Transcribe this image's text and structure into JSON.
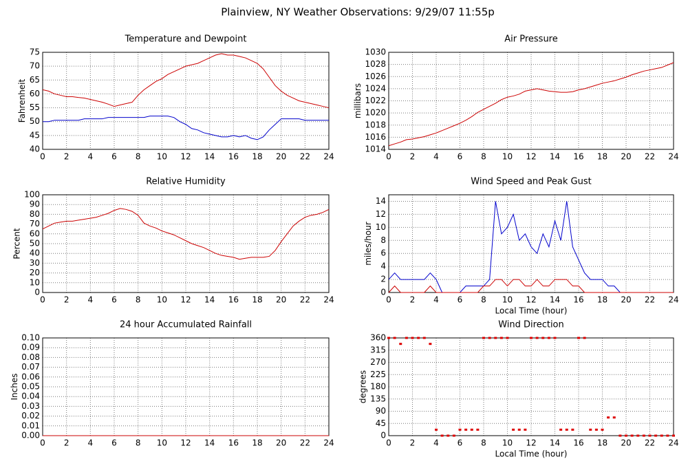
{
  "title": "Plainview, NY Weather Observations: 9/29/07 11:55p",
  "chart_data": [
    {
      "type": "line",
      "title": "Temperature and Dewpoint",
      "ylabel": "Fahrenheit",
      "x": [
        0,
        0.5,
        1,
        1.5,
        2,
        2.5,
        3,
        3.5,
        4,
        4.5,
        5,
        5.5,
        6,
        6.5,
        7,
        7.5,
        8,
        8.5,
        9,
        9.5,
        10,
        10.5,
        11,
        11.5,
        12,
        12.5,
        13,
        13.5,
        14,
        14.5,
        15,
        15.5,
        16,
        16.5,
        17,
        17.5,
        18,
        18.5,
        19,
        19.5,
        20,
        20.5,
        21,
        21.5,
        22,
        22.5,
        23,
        23.5,
        24
      ],
      "series": [
        {
          "color": "#cc0000",
          "values": [
            61.5,
            61,
            60,
            59.5,
            59,
            59,
            58.7,
            58.5,
            58,
            57.5,
            57,
            56.3,
            55.5,
            56,
            56.5,
            57,
            59.5,
            61.5,
            63,
            64.5,
            65.5,
            67,
            68,
            69,
            70,
            70.5,
            71,
            72,
            73,
            74,
            74.5,
            74,
            74,
            73.5,
            73,
            72,
            71,
            69,
            66,
            63,
            61,
            59.5,
            58.5,
            57.5,
            57,
            56.5,
            56,
            55.5,
            55
          ]
        },
        {
          "color": "#0000cc",
          "values": [
            50,
            50,
            50.5,
            50.5,
            50.5,
            50.5,
            50.5,
            51,
            51,
            51,
            51,
            51.5,
            51.5,
            51.5,
            51.5,
            51.5,
            51.5,
            51.5,
            52,
            52,
            52,
            52,
            51.5,
            50,
            49,
            47.5,
            47,
            46,
            45.5,
            45,
            44.5,
            44.5,
            45,
            44.5,
            45,
            44,
            43.5,
            44.5,
            47,
            49,
            51,
            51,
            51,
            51,
            50.5,
            50.5,
            50.5,
            50.5,
            50.5
          ]
        }
      ],
      "xlim": [
        0,
        24
      ],
      "xticks": [
        0,
        2,
        4,
        6,
        8,
        10,
        12,
        14,
        16,
        18,
        20,
        22,
        24
      ],
      "ylim": [
        40,
        75
      ],
      "yticks": [
        40,
        45,
        50,
        55,
        60,
        65,
        70,
        75
      ],
      "grid": true
    },
    {
      "type": "line",
      "title": "Air Pressure",
      "ylabel": "millibars",
      "x": [
        0,
        0.5,
        1,
        1.5,
        2,
        2.5,
        3,
        3.5,
        4,
        4.5,
        5,
        5.5,
        6,
        6.5,
        7,
        7.5,
        8,
        8.5,
        9,
        9.5,
        10,
        10.5,
        11,
        11.5,
        12,
        12.5,
        13,
        13.5,
        14,
        14.5,
        15,
        15.5,
        16,
        16.5,
        17,
        17.5,
        18,
        18.5,
        19,
        19.5,
        20,
        20.5,
        21,
        21.5,
        22,
        22.5,
        23,
        23.5,
        24
      ],
      "series": [
        {
          "color": "#cc0000",
          "values": [
            1014.6,
            1014.9,
            1015.2,
            1015.6,
            1015.7,
            1015.9,
            1016.1,
            1016.4,
            1016.7,
            1017.1,
            1017.5,
            1017.9,
            1018.3,
            1018.8,
            1019.4,
            1020.1,
            1020.6,
            1021.1,
            1021.6,
            1022.2,
            1022.6,
            1022.8,
            1023.1,
            1023.6,
            1023.8,
            1024,
            1023.8,
            1023.6,
            1023.5,
            1023.4,
            1023.4,
            1023.5,
            1023.8,
            1024,
            1024.3,
            1024.6,
            1024.9,
            1025.1,
            1025.3,
            1025.6,
            1025.9,
            1026.3,
            1026.6,
            1026.9,
            1027.1,
            1027.3,
            1027.5,
            1027.9,
            1028.3
          ]
        }
      ],
      "xlim": [
        0,
        24
      ],
      "xticks": [
        0,
        2,
        4,
        6,
        8,
        10,
        12,
        14,
        16,
        18,
        20,
        22,
        24
      ],
      "ylim": [
        1014,
        1030
      ],
      "yticks": [
        1014,
        1016,
        1018,
        1020,
        1022,
        1024,
        1026,
        1028,
        1030
      ],
      "grid": true
    },
    {
      "type": "line",
      "title": "Relative Humidity",
      "ylabel": "Percent",
      "x": [
        0,
        0.5,
        1,
        1.5,
        2,
        2.5,
        3,
        3.5,
        4,
        4.5,
        5,
        5.5,
        6,
        6.5,
        7,
        7.5,
        8,
        8.5,
        9,
        9.5,
        10,
        10.5,
        11,
        11.5,
        12,
        12.5,
        13,
        13.5,
        14,
        14.5,
        15,
        15.5,
        16,
        16.5,
        17,
        17.5,
        18,
        18.5,
        19,
        19.5,
        20,
        20.5,
        21,
        21.5,
        22,
        22.5,
        23,
        23.5,
        24
      ],
      "series": [
        {
          "color": "#cc0000",
          "values": [
            65,
            68,
            71,
            72,
            73,
            73,
            74,
            75,
            76,
            77,
            79,
            81,
            84,
            86,
            85,
            83,
            79,
            71,
            68,
            66,
            63,
            61,
            59,
            56,
            53,
            50,
            48,
            46,
            43,
            40,
            38,
            37,
            36,
            34,
            35,
            36,
            36,
            36,
            37,
            43,
            52,
            60,
            68,
            73,
            77,
            79,
            80,
            82,
            85
          ]
        }
      ],
      "xlim": [
        0,
        24
      ],
      "xticks": [
        0,
        2,
        4,
        6,
        8,
        10,
        12,
        14,
        16,
        18,
        20,
        22,
        24
      ],
      "ylim": [
        0,
        100
      ],
      "yticks": [
        0,
        10,
        20,
        30,
        40,
        50,
        60,
        70,
        80,
        90,
        100
      ],
      "grid": true
    },
    {
      "type": "line",
      "title": "Wind Speed and Peak Gust",
      "ylabel": "miles/hour",
      "xlabel": "Local Time (hour)",
      "x": [
        0,
        0.5,
        1,
        1.5,
        2,
        2.5,
        3,
        3.5,
        4,
        4.5,
        5,
        5.5,
        6,
        6.5,
        7,
        7.5,
        8,
        8.5,
        9,
        9.5,
        10,
        10.5,
        11,
        11.5,
        12,
        12.5,
        13,
        13.5,
        14,
        14.5,
        15,
        15.5,
        16,
        16.5,
        17,
        17.5,
        18,
        18.5,
        19,
        19.5,
        20,
        20.5,
        21,
        21.5,
        22,
        22.5,
        23,
        23.5,
        24
      ],
      "series": [
        {
          "color": "#0000cc",
          "values": [
            2,
            3,
            2,
            2,
            2,
            2,
            2,
            3,
            2,
            0,
            0,
            0,
            0,
            1,
            1,
            1,
            1,
            2,
            14,
            9,
            10,
            12,
            8,
            9,
            7,
            6,
            9,
            7,
            11,
            8,
            14,
            7,
            5,
            3,
            2,
            2,
            2,
            1,
            1,
            0,
            0,
            0,
            0,
            0,
            0,
            0,
            0,
            0,
            0
          ]
        },
        {
          "color": "#cc0000",
          "values": [
            0,
            1,
            0,
            0,
            0,
            0,
            0,
            1,
            0,
            0,
            0,
            0,
            0,
            0,
            0,
            0,
            1,
            1,
            2,
            2,
            1,
            2,
            2,
            1,
            1,
            2,
            1,
            1,
            2,
            2,
            2,
            1,
            1,
            0,
            0,
            0,
            0,
            0,
            0,
            0,
            0,
            0,
            0,
            0,
            0,
            0,
            0,
            0,
            0
          ]
        }
      ],
      "xlim": [
        0,
        24
      ],
      "xticks": [
        0,
        2,
        4,
        6,
        8,
        10,
        12,
        14,
        16,
        18,
        20,
        22,
        24
      ],
      "ylim": [
        0,
        15
      ],
      "yticks": [
        0,
        2,
        4,
        6,
        8,
        10,
        12,
        14
      ],
      "grid": true
    },
    {
      "type": "line",
      "title": "24 hour Accumulated Rainfall",
      "ylabel": "Inches",
      "x": [
        0,
        24
      ],
      "series": [
        {
          "color": "#cc0000",
          "values": [
            0,
            0
          ]
        }
      ],
      "xlim": [
        0,
        24
      ],
      "xticks": [
        0,
        2,
        4,
        6,
        8,
        10,
        12,
        14,
        16,
        18,
        20,
        22,
        24
      ],
      "ylim": [
        0,
        0.1
      ],
      "yticks": [
        {
          "value": 0,
          "label": "0.00"
        },
        {
          "value": 0.01,
          "label": "0.01"
        },
        {
          "value": 0.02,
          "label": "0.02"
        },
        {
          "value": 0.03,
          "label": "0.03"
        },
        {
          "value": 0.04,
          "label": "0.04"
        },
        {
          "value": 0.05,
          "label": "0.05"
        },
        {
          "value": 0.06,
          "label": "0.06"
        },
        {
          "value": 0.07,
          "label": "0.07"
        },
        {
          "value": 0.08,
          "label": "0.08"
        },
        {
          "value": 0.09,
          "label": "0.09"
        },
        {
          "value": 0.1,
          "label": "0.10"
        }
      ],
      "grid": true
    },
    {
      "type": "scatter",
      "title": "Wind Direction",
      "ylabel": "degrees",
      "xlabel": "Local Time (hour)",
      "x": [
        0,
        0.5,
        1,
        1.5,
        2,
        2.5,
        3,
        3.5,
        4,
        4.5,
        5,
        5.5,
        6,
        6.5,
        7,
        7.5,
        8,
        8.5,
        9,
        9.5,
        10,
        10.5,
        11,
        11.5,
        12,
        12.5,
        13,
        13.5,
        14,
        14.5,
        15,
        15.5,
        16,
        16.5,
        17,
        17.5,
        18,
        18.5,
        19,
        19.5,
        20,
        20.5,
        21,
        21.5,
        22,
        22.5,
        23,
        23.5,
        24
      ],
      "series": [
        {
          "color": "#dd0000",
          "values": [
            360,
            360,
            338,
            360,
            360,
            360,
            360,
            338,
            22,
            0,
            0,
            0,
            22,
            22,
            22,
            22,
            360,
            360,
            360,
            360,
            360,
            22,
            22,
            22,
            360,
            360,
            360,
            360,
            360,
            22,
            22,
            22,
            360,
            360,
            22,
            22,
            22,
            67,
            67,
            0,
            0,
            0,
            0,
            0,
            0,
            0,
            0,
            0,
            0
          ]
        }
      ],
      "xlim": [
        0,
        24
      ],
      "xticks": [
        0,
        2,
        4,
        6,
        8,
        10,
        12,
        14,
        16,
        18,
        20,
        22,
        24
      ],
      "ylim": [
        0,
        360
      ],
      "yticks": [
        0,
        45,
        90,
        135,
        180,
        225,
        270,
        315,
        360
      ],
      "grid": true
    }
  ]
}
